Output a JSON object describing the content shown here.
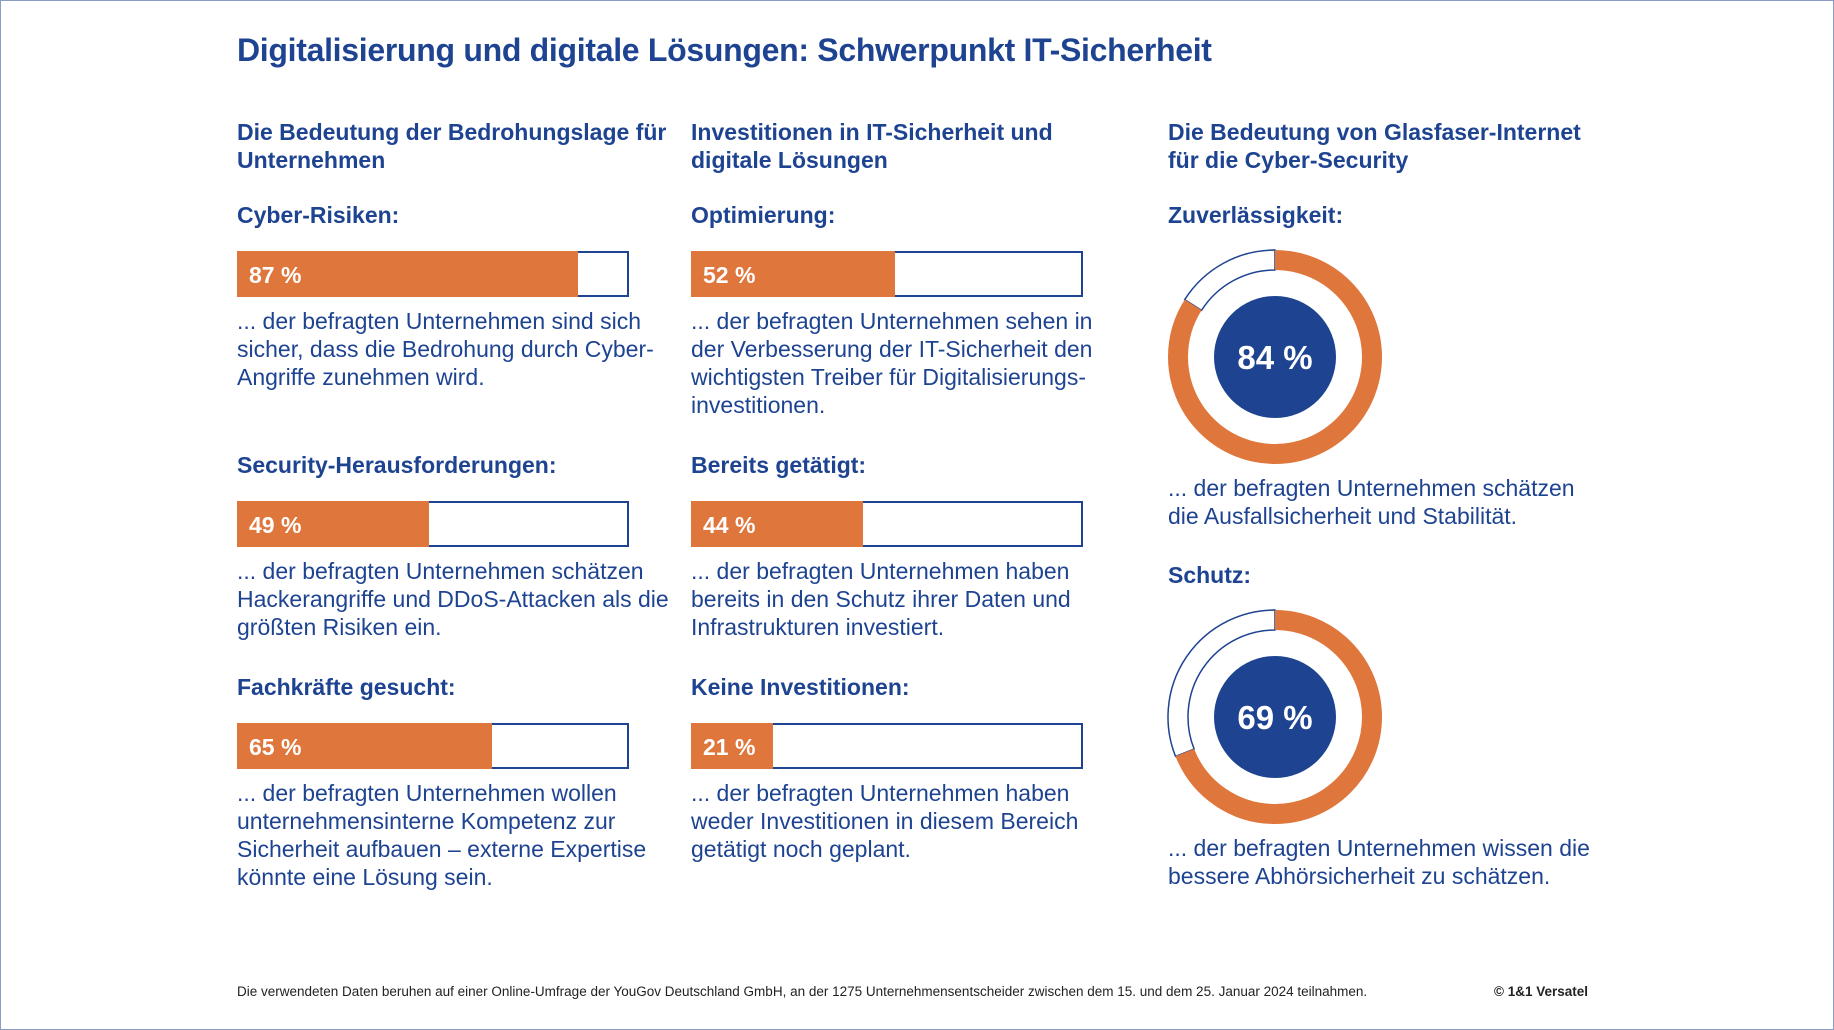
{
  "title": "Digitalisierung und digitale Lösungen: Schwerpunkt IT-Sicherheit",
  "colors": {
    "blue": "#1d4391",
    "orange": "#df763b"
  },
  "columns": [
    {
      "heading": "Die Bedeutung der Bedrohungslage für Unternehmen",
      "sections": [
        {
          "heading": "Cyber-Risiken:",
          "value": 87,
          "label": "87 %",
          "text": "... der befragten Unternehmen sind sich sicher, dass die Bedrohung durch Cyber-Angriffe zunehmen wird."
        },
        {
          "heading": "Security-Herausforderungen:",
          "value": 49,
          "label": "49 %",
          "text": "... der befragten Unternehmen schätzen Hackerangriffe und DDoS-Attacken als die größten Risiken ein."
        },
        {
          "heading": "Fachkräfte gesucht:",
          "value": 65,
          "label": "65 %",
          "text": "... der befragten Unternehmen wollen unternehmensinterne Kompetenz zur Sicherheit aufbauen – externe Expertise könnte eine Lösung sein."
        }
      ]
    },
    {
      "heading": "Investitionen in IT-Sicherheit und digitale Lösungen",
      "sections": [
        {
          "heading": "Optimierung:",
          "value": 52,
          "label": "52 %",
          "text": "... der befragten Unternehmen sehen in der Verbesserung der IT-Sicherheit den wichtigsten Treiber für Digitalisierungs-investitionen."
        },
        {
          "heading": "Bereits getätigt:",
          "value": 44,
          "label": "44 %",
          "text": "... der befragten Unternehmen haben bereits in den Schutz ihrer Daten und Infrastrukturen investiert."
        },
        {
          "heading": "Keine Investitionen:",
          "value": 21,
          "label": "21 %",
          "text": "... der befragten Unternehmen haben weder Investitionen in diesem Bereich getätigt noch geplant."
        }
      ]
    },
    {
      "heading": "Die Bedeutung von Glasfaser-Internet für die Cyber-Security",
      "sections": [
        {
          "heading": "Zuverlässigkeit:",
          "value": 84,
          "label": "84 %",
          "text": "...  der befragten Unternehmen schätzen die  Ausfallsicherheit und Stabilität."
        },
        {
          "heading": "Schutz:",
          "value": 69,
          "label": "69 %",
          "text": "... der befragten Unternehmen wissen die bessere Abhörsicherheit zu schätzen."
        }
      ]
    }
  ],
  "footer": "Die verwendeten Daten beruhen auf einer Online-Umfrage der YouGov Deutschland GmbH, an der 1275 Unternehmensentscheider zwischen dem 15. und dem 25. Januar 2024 teilnahmen.",
  "copyright": "© 1&1 Versatel"
}
